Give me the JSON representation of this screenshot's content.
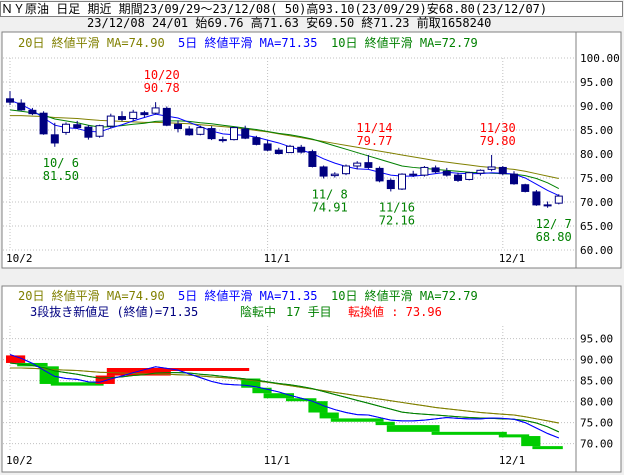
{
  "header": {
    "line1": "ＮＹ原油 日足 期近 期間23/09/29～23/12/08( 50)高93.10(23/09/29)安68.80(23/12/07)",
    "line2": "23/12/08 24/01 始69.76 高71.63 安69.50 終71.23 前取1658240"
  },
  "colors": {
    "ma20": "#808000",
    "ma5": "#0000ff",
    "ma10": "#008000",
    "candle_down": "#000080",
    "candle_up_fill": "#ffffff",
    "kagi_up": "#ff0000",
    "kagi_down": "#00cc00",
    "grid": "#c0c0c0"
  },
  "legend": {
    "ma20": "20日 終値平滑 MA=74.90",
    "ma5": "5日 終値平滑 MA=71.35",
    "ma10": "10日 終値平滑 MA=72.79"
  },
  "lower_info": {
    "kagi_text": "3段抜き新値足 (終値)=71.35",
    "status": "陰転中",
    "bars": "17 手目",
    "reversal": "転換値 : 73.96"
  },
  "chart_data": [
    {
      "type": "candlestick",
      "y_ticks": [
        "100.00",
        "95.00",
        "90.00",
        "85.00",
        "80.00",
        "75.00",
        "70.00",
        "65.00",
        "60.00"
      ],
      "ylim": [
        60,
        100
      ],
      "x_ticks": [
        {
          "label": "10/2",
          "i": 0
        },
        {
          "label": "11/1",
          "i": 23
        },
        {
          "label": "12/1",
          "i": 44
        }
      ],
      "annotations": [
        {
          "date": "10/20",
          "value": "90.78",
          "kind": "high",
          "i": 13
        },
        {
          "date": "10/ 6",
          "value": "81.50",
          "kind": "low",
          "i": 4
        },
        {
          "date": "11/14",
          "value": "79.77",
          "kind": "high",
          "i": 32
        },
        {
          "date": "11/ 8",
          "value": "74.91",
          "kind": "low",
          "i": 28
        },
        {
          "date": "11/16",
          "value": "72.16",
          "kind": "low",
          "i": 34
        },
        {
          "date": "11/30",
          "value": "79.80",
          "kind": "high",
          "i": 43
        },
        {
          "date": "12/ 7",
          "value": "68.80",
          "kind": "low",
          "i": 48
        }
      ],
      "ohlc": [
        [
          91.5,
          93.1,
          90.2,
          90.8
        ],
        [
          90.6,
          91.4,
          89.0,
          89.2
        ],
        [
          89.1,
          89.6,
          88.1,
          88.4
        ],
        [
          88.5,
          88.9,
          84.0,
          84.2
        ],
        [
          84.0,
          86.5,
          81.5,
          82.3
        ],
        [
          84.5,
          86.6,
          84.0,
          86.2
        ],
        [
          86.1,
          86.9,
          85.2,
          85.5
        ],
        [
          85.6,
          86.0,
          83.0,
          83.5
        ],
        [
          83.7,
          86.1,
          83.4,
          85.9
        ],
        [
          85.8,
          88.4,
          85.3,
          87.9
        ],
        [
          87.8,
          88.9,
          86.8,
          87.2
        ],
        [
          87.4,
          89.2,
          87.0,
          88.7
        ],
        [
          88.6,
          89.0,
          87.6,
          88.2
        ],
        [
          88.5,
          90.8,
          88.2,
          89.6
        ],
        [
          89.5,
          89.9,
          85.8,
          86.0
        ],
        [
          86.2,
          87.0,
          84.5,
          85.3
        ],
        [
          85.2,
          85.8,
          83.8,
          84.0
        ],
        [
          84.1,
          85.9,
          83.9,
          85.5
        ],
        [
          85.3,
          85.8,
          82.9,
          83.2
        ],
        [
          83.0,
          83.6,
          82.4,
          82.8
        ],
        [
          83.0,
          85.6,
          82.8,
          85.5
        ],
        [
          85.2,
          85.9,
          83.1,
          83.3
        ],
        [
          83.4,
          83.8,
          81.8,
          82.0
        ],
        [
          82.1,
          82.9,
          80.6,
          80.8
        ],
        [
          80.8,
          81.3,
          79.9,
          80.1
        ],
        [
          80.3,
          81.9,
          80.2,
          81.6
        ],
        [
          81.4,
          81.9,
          80.1,
          80.4
        ],
        [
          80.5,
          80.9,
          77.2,
          77.4
        ],
        [
          77.3,
          77.6,
          74.9,
          75.4
        ],
        [
          75.5,
          76.2,
          75.1,
          75.8
        ],
        [
          75.9,
          77.8,
          75.6,
          77.5
        ],
        [
          77.5,
          78.5,
          76.8,
          78.1
        ],
        [
          78.2,
          79.8,
          76.9,
          77.2
        ],
        [
          77.0,
          77.4,
          74.1,
          74.4
        ],
        [
          74.5,
          74.9,
          72.2,
          72.8
        ],
        [
          72.7,
          76.0,
          72.5,
          75.8
        ],
        [
          75.8,
          76.5,
          75.2,
          75.6
        ],
        [
          75.6,
          77.5,
          75.3,
          77.2
        ],
        [
          77.1,
          77.6,
          76.0,
          76.3
        ],
        [
          76.4,
          77.1,
          75.3,
          75.6
        ],
        [
          75.6,
          76.1,
          74.2,
          74.5
        ],
        [
          74.7,
          76.3,
          74.5,
          76.1
        ],
        [
          76.0,
          76.8,
          75.5,
          76.6
        ],
        [
          76.8,
          79.8,
          76.4,
          77.3
        ],
        [
          77.2,
          77.5,
          75.6,
          75.9
        ],
        [
          75.8,
          76.4,
          73.6,
          73.8
        ],
        [
          73.6,
          73.8,
          72.0,
          72.2
        ],
        [
          72.1,
          72.5,
          69.2,
          69.4
        ],
        [
          69.4,
          70.1,
          68.8,
          69.3
        ],
        [
          69.76,
          71.63,
          69.5,
          71.23
        ]
      ],
      "ma5": [
        91.2,
        90.3,
        89.1,
        87.5,
        86.0,
        85.5,
        85.3,
        84.7,
        84.6,
        85.4,
        86.1,
        86.9,
        87.6,
        88.3,
        87.9,
        87.5,
        86.6,
        85.7,
        84.8,
        84.2,
        84.0,
        83.9,
        83.5,
        82.9,
        82.3,
        81.5,
        80.8,
        80.1,
        79.0,
        78.1,
        77.4,
        76.9,
        76.8,
        76.2,
        75.6,
        75.4,
        75.4,
        75.6,
        75.9,
        76.2,
        76.0,
        75.9,
        75.9,
        76.1,
        76.0,
        75.8,
        75.0,
        73.7,
        72.4,
        71.35
      ],
      "ma10": [
        89.2,
        88.9,
        88.6,
        88.1,
        87.3,
        86.9,
        86.5,
        86.0,
        85.6,
        85.7,
        85.9,
        86.2,
        86.4,
        86.8,
        86.9,
        86.9,
        86.8,
        86.5,
        86.3,
        86.0,
        85.7,
        85.4,
        85.1,
        84.7,
        84.3,
        84.0,
        83.6,
        83.1,
        82.4,
        81.7,
        81.0,
        80.3,
        79.6,
        78.9,
        78.2,
        77.5,
        77.2,
        77.0,
        76.8,
        76.6,
        76.4,
        76.2,
        76.1,
        76.0,
        75.9,
        75.8,
        75.5,
        74.9,
        74.0,
        72.79
      ],
      "ma20": [
        88.0,
        88.0,
        87.9,
        87.8,
        87.6,
        87.5,
        87.4,
        87.2,
        87.0,
        86.9,
        86.8,
        86.7,
        86.6,
        86.6,
        86.5,
        86.4,
        86.3,
        86.1,
        85.9,
        85.7,
        85.5,
        85.2,
        84.9,
        84.6,
        84.2,
        83.8,
        83.4,
        83.0,
        82.6,
        82.2,
        81.8,
        81.4,
        81.0,
        80.6,
        80.2,
        79.8,
        79.4,
        79.0,
        78.6,
        78.3,
        78.0,
        77.7,
        77.4,
        77.2,
        77.0,
        76.8,
        76.4,
        75.9,
        75.4,
        74.9
      ]
    },
    {
      "type": "kagi_three_line_break",
      "y_ticks": [
        "95.00",
        "90.00",
        "85.00",
        "80.00",
        "75.00",
        "70.00"
      ],
      "ylim": [
        68,
        98
      ],
      "x_ticks": [
        {
          "label": "10/2",
          "i": 0
        },
        {
          "label": "11/1",
          "i": 23
        },
        {
          "label": "12/1",
          "i": 44
        }
      ],
      "bricks": [
        {
          "i0": 0,
          "i1": 1,
          "lo": 89.2,
          "hi": 91.0,
          "dir": "up"
        },
        {
          "i0": 1,
          "i1": 3,
          "lo": 88.4,
          "hi": 89.2,
          "dir": "down"
        },
        {
          "i0": 3,
          "i1": 4,
          "lo": 84.2,
          "hi": 88.4,
          "dir": "down"
        },
        {
          "i0": 4,
          "i1": 8,
          "lo": 83.8,
          "hi": 84.6,
          "dir": "down"
        },
        {
          "i0": 8,
          "i1": 9,
          "lo": 84.2,
          "hi": 86.2,
          "dir": "up"
        },
        {
          "i0": 9,
          "i1": 14,
          "lo": 86.2,
          "hi": 88.0,
          "dir": "up"
        },
        {
          "i0": 14,
          "i1": 21,
          "lo": 87.6,
          "hi": 88.0,
          "dir": "up"
        },
        {
          "i0": 21,
          "i1": 22,
          "lo": 83.3,
          "hi": 85.5,
          "dir": "down"
        },
        {
          "i0": 22,
          "i1": 23,
          "lo": 82.0,
          "hi": 83.3,
          "dir": "down"
        },
        {
          "i0": 23,
          "i1": 25,
          "lo": 80.8,
          "hi": 82.0,
          "dir": "down"
        },
        {
          "i0": 25,
          "i1": 27,
          "lo": 80.1,
          "hi": 80.8,
          "dir": "down"
        },
        {
          "i0": 27,
          "i1": 28,
          "lo": 77.4,
          "hi": 80.1,
          "dir": "down"
        },
        {
          "i0": 28,
          "i1": 29,
          "lo": 76.0,
          "hi": 77.4,
          "dir": "down"
        },
        {
          "i0": 29,
          "i1": 33,
          "lo": 75.2,
          "hi": 76.0,
          "dir": "down"
        },
        {
          "i0": 33,
          "i1": 34,
          "lo": 74.4,
          "hi": 75.2,
          "dir": "down"
        },
        {
          "i0": 34,
          "i1": 38,
          "lo": 72.8,
          "hi": 74.4,
          "dir": "down"
        },
        {
          "i0": 38,
          "i1": 44,
          "lo": 72.2,
          "hi": 72.8,
          "dir": "down"
        },
        {
          "i0": 44,
          "i1": 46,
          "lo": 71.8,
          "hi": 72.2,
          "dir": "down"
        },
        {
          "i0": 46,
          "i1": 47,
          "lo": 69.4,
          "hi": 71.8,
          "dir": "down"
        },
        {
          "i0": 47,
          "i1": 49,
          "lo": 68.8,
          "hi": 69.4,
          "dir": "down"
        }
      ],
      "ma5": [
        91.2,
        90.3,
        89.1,
        87.5,
        86.0,
        85.5,
        85.3,
        84.7,
        84.6,
        85.4,
        86.1,
        86.9,
        87.6,
        88.3,
        87.9,
        87.5,
        86.6,
        85.7,
        84.8,
        84.2,
        84.0,
        83.9,
        83.5,
        82.9,
        82.3,
        81.5,
        80.8,
        80.1,
        79.0,
        78.1,
        77.4,
        76.9,
        76.8,
        76.2,
        75.6,
        75.4,
        75.4,
        75.6,
        75.9,
        76.2,
        76.0,
        75.9,
        75.9,
        76.1,
        76.0,
        75.8,
        75.0,
        73.7,
        72.4,
        71.35
      ],
      "ma10": [
        89.2,
        88.9,
        88.6,
        88.1,
        87.3,
        86.9,
        86.5,
        86.0,
        85.6,
        85.7,
        85.9,
        86.2,
        86.4,
        86.8,
        86.9,
        86.9,
        86.8,
        86.5,
        86.3,
        86.0,
        85.7,
        85.4,
        85.1,
        84.7,
        84.3,
        84.0,
        83.6,
        83.1,
        82.4,
        81.7,
        81.0,
        80.3,
        79.6,
        78.9,
        78.2,
        77.5,
        77.2,
        77.0,
        76.8,
        76.6,
        76.4,
        76.2,
        76.1,
        76.0,
        75.9,
        75.8,
        75.5,
        74.9,
        74.0,
        72.79
      ],
      "ma20": [
        88.0,
        88.0,
        87.9,
        87.8,
        87.6,
        87.5,
        87.4,
        87.2,
        87.0,
        86.9,
        86.8,
        86.7,
        86.6,
        86.6,
        86.5,
        86.4,
        86.3,
        86.1,
        85.9,
        85.7,
        85.5,
        85.2,
        84.9,
        84.6,
        84.2,
        83.8,
        83.4,
        83.0,
        82.6,
        82.2,
        81.8,
        81.4,
        81.0,
        80.6,
        80.2,
        79.8,
        79.4,
        79.0,
        78.6,
        78.3,
        78.0,
        77.7,
        77.4,
        77.2,
        77.0,
        76.8,
        76.4,
        75.9,
        75.4,
        74.9
      ]
    }
  ]
}
